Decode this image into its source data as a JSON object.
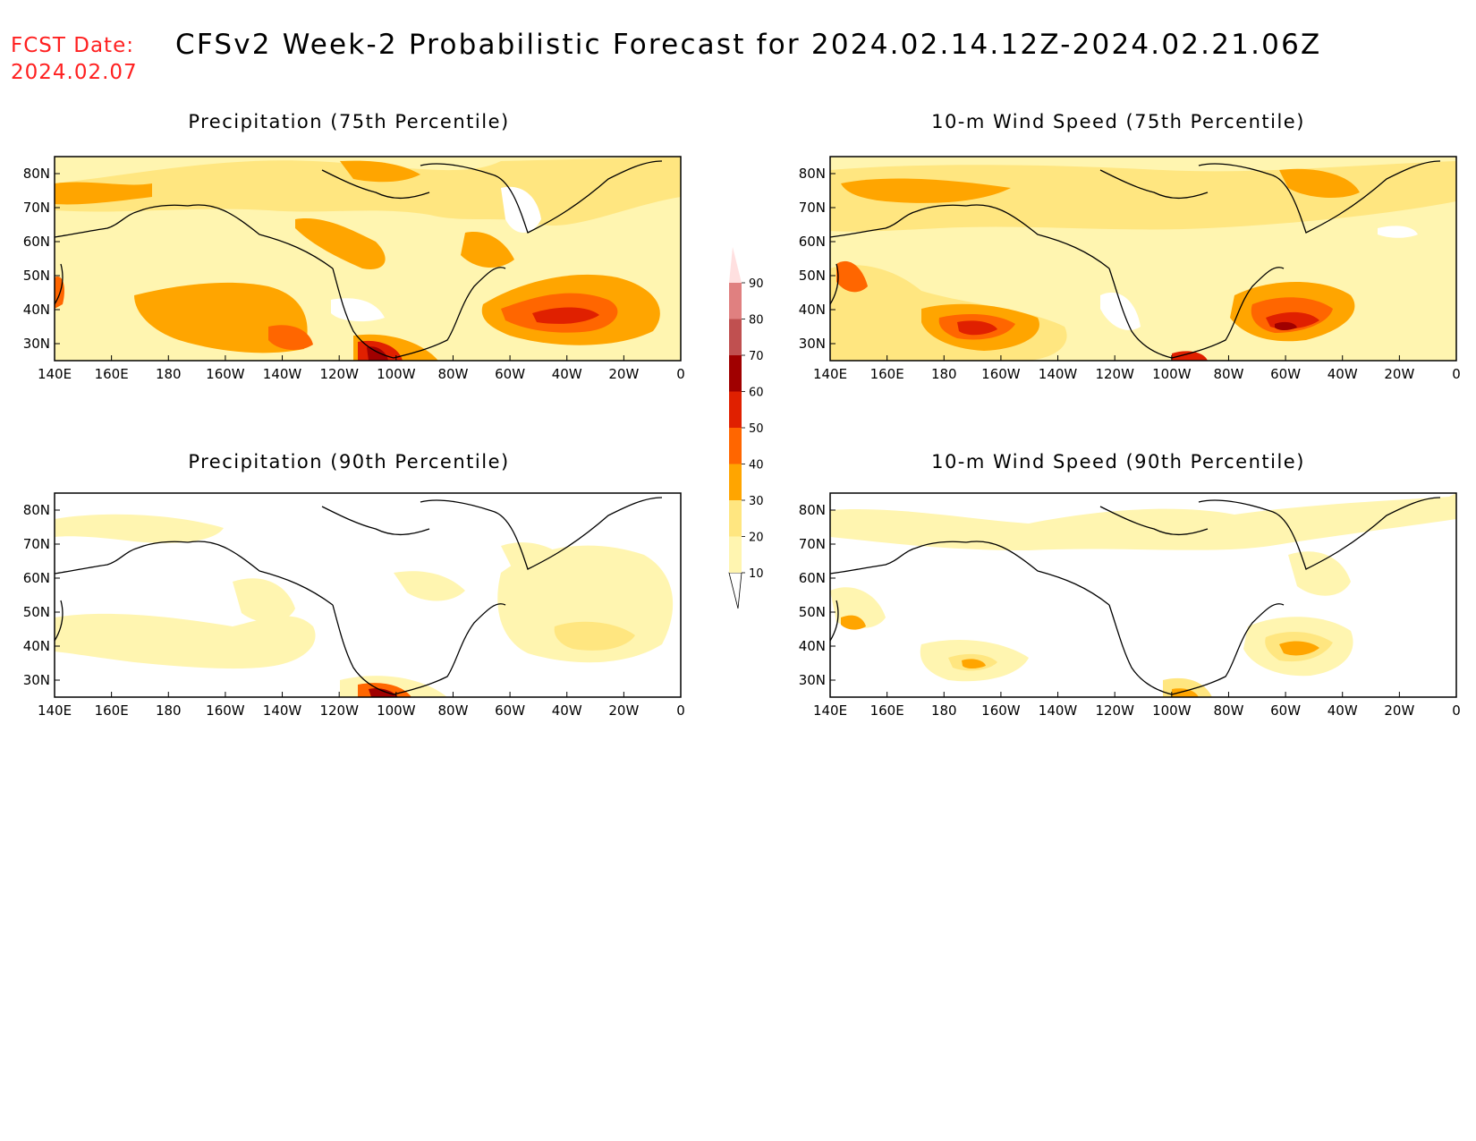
{
  "header": {
    "fcst_label": "FCST Date:",
    "fcst_date": "2024.02.07",
    "title": "CFSv2 Week-2 Probabilistic Forecast for 2024.02.14.12Z-2024.02.21.06Z"
  },
  "axes": {
    "lon_labels": [
      "140E",
      "160E",
      "180",
      "160W",
      "140W",
      "120W",
      "100W",
      "80W",
      "60W",
      "40W",
      "20W",
      "0"
    ],
    "lat_labels": [
      "80N",
      "70N",
      "60N",
      "50N",
      "40N",
      "30N"
    ]
  },
  "colorbar": {
    "levels": [
      "10",
      "20",
      "30",
      "40",
      "50",
      "60",
      "70",
      "80",
      "90"
    ],
    "colors": [
      "#ffffff",
      "#fff5b0",
      "#ffe680",
      "#ffa500",
      "#ff6600",
      "#e02000",
      "#a00000",
      "#c05050",
      "#e08080",
      "#f5b5b5",
      "#ffe0e0"
    ]
  },
  "panels": [
    {
      "id": "precip-75",
      "title": "Precipitation (75th Percentile)"
    },
    {
      "id": "wind-75",
      "title": "10-m Wind Speed (75th Percentile)"
    },
    {
      "id": "precip-90",
      "title": "Precipitation (90th Percentile)"
    },
    {
      "id": "wind-90",
      "title": "10-m Wind Speed (90th Percentile)"
    }
  ],
  "map_extent": {
    "lon_min": 140,
    "lon_max": 360,
    "lat_min": 25,
    "lat_max": 85
  }
}
